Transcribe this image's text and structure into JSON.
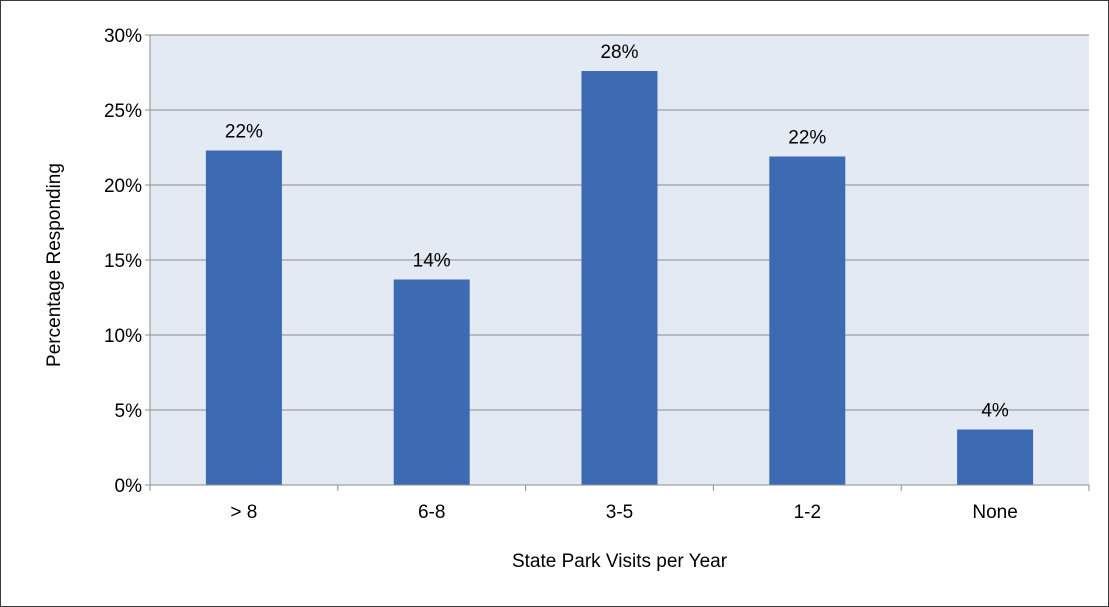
{
  "chart_data": {
    "type": "bar",
    "title": "",
    "xlabel": "State Park Visits per Year",
    "ylabel": "Percentage Responding",
    "categories": [
      "> 8",
      "6-8",
      "3-5",
      "1-2",
      "None"
    ],
    "values": [
      22.3,
      13.7,
      27.6,
      21.9,
      3.7
    ],
    "data_labels": [
      "22%",
      "14%",
      "28%",
      "22%",
      "4%"
    ],
    "ylim": [
      0,
      30
    ],
    "yticks": [
      0,
      5,
      10,
      15,
      20,
      25,
      30
    ],
    "ytick_labels": [
      "0%",
      "5%",
      "10%",
      "15%",
      "20%",
      "25%",
      "30%"
    ],
    "grid": true,
    "legend": "none",
    "colors": {
      "bar": "#3c6bb4",
      "plot_background": "#e4eaf4",
      "gridline": "#8c8c8c",
      "axis": "#8c8c8c"
    }
  }
}
